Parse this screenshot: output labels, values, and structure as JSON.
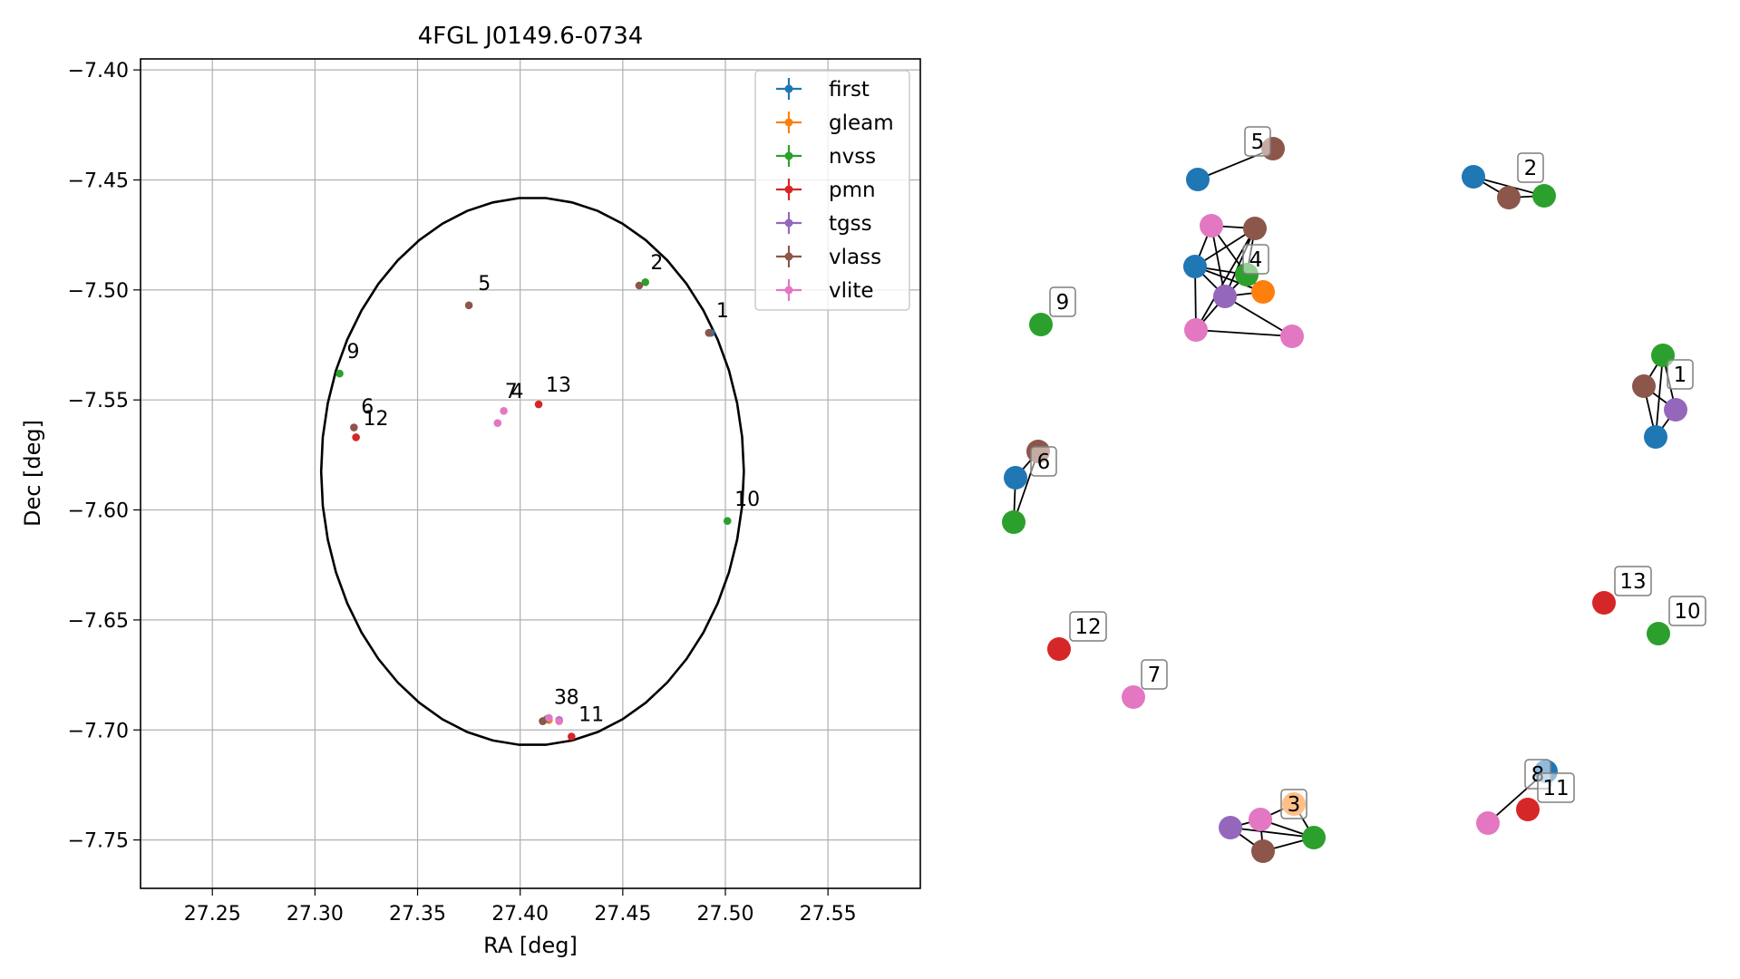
{
  "chart_data": [
    {
      "type": "scatter",
      "title": "4FGL J0149.6-0734",
      "xlabel": "RA [deg]",
      "ylabel": "Dec [deg]",
      "xlim": [
        27.215,
        27.595
      ],
      "ylim": [
        -7.772,
        -7.395
      ],
      "xticks": [
        27.25,
        27.3,
        27.35,
        27.4,
        27.45,
        27.5,
        27.55
      ],
      "xtick_labels": [
        "27.25",
        "27.30",
        "27.35",
        "27.40",
        "27.45",
        "27.50",
        "27.55"
      ],
      "yticks": [
        -7.4,
        -7.45,
        -7.5,
        -7.55,
        -7.6,
        -7.65,
        -7.7,
        -7.75
      ],
      "ytick_labels": [
        "−7.40",
        "−7.45",
        "−7.50",
        "−7.55",
        "−7.60",
        "−7.65",
        "−7.70",
        "−7.75"
      ],
      "grid": true,
      "legend_position": "top-right",
      "ellipse": {
        "center": [
          27.406,
          -7.5825
        ],
        "ra_semi_axis": 0.103,
        "dec_semi_axis": 0.1245,
        "color": "#000000"
      },
      "series": [
        {
          "name": "first",
          "color": "#1f77b4",
          "points": [
            [
              27.492,
              -7.5195
            ],
            [
              27.411,
              -7.696
            ],
            [
              27.493,
              -7.5195
            ]
          ]
        },
        {
          "name": "gleam",
          "color": "#ff7f0e",
          "points": [
            [
              27.414,
              -7.6955
            ]
          ]
        },
        {
          "name": "nvss",
          "color": "#2ca02c",
          "points": [
            [
              27.461,
              -7.4965
            ],
            [
              27.312,
              -7.538
            ],
            [
              27.501,
              -7.605
            ],
            [
              27.413,
              -7.695
            ]
          ]
        },
        {
          "name": "pmn",
          "color": "#d62728",
          "points": [
            [
              27.409,
              -7.552
            ],
            [
              27.32,
              -7.567
            ],
            [
              27.425,
              -7.703
            ]
          ]
        },
        {
          "name": "tgss",
          "color": "#9467bd",
          "points": [
            [
              27.419,
              -7.6955
            ]
          ]
        },
        {
          "name": "vlass",
          "color": "#8c564b",
          "points": [
            [
              27.458,
              -7.498
            ],
            [
              27.375,
              -7.507
            ],
            [
              27.319,
              -7.5625
            ],
            [
              27.411,
              -7.696
            ],
            [
              27.492,
              -7.5195
            ]
          ]
        },
        {
          "name": "vlite",
          "color": "#e377c2",
          "points": [
            [
              27.392,
              -7.555
            ],
            [
              27.389,
              -7.5605
            ],
            [
              27.414,
              -7.6945
            ],
            [
              27.419,
              -7.696
            ]
          ]
        }
      ],
      "labels": [
        {
          "text": "1",
          "x": 27.4955,
          "y": -7.5125
        },
        {
          "text": "2",
          "x": 27.4635,
          "y": -7.4905
        },
        {
          "text": "3",
          "x": 27.4165,
          "y": -7.6882
        },
        {
          "text": "4",
          "x": 27.3955,
          "y": -7.549
        },
        {
          "text": "5",
          "x": 27.3795,
          "y": -7.5
        },
        {
          "text": "6",
          "x": 27.3225,
          "y": -7.5562
        },
        {
          "text": "7",
          "x": 27.3925,
          "y": -7.549
        },
        {
          "text": "8",
          "x": 27.4225,
          "y": -7.6882
        },
        {
          "text": "9",
          "x": 27.3155,
          "y": -7.531
        },
        {
          "text": "10",
          "x": 27.5045,
          "y": -7.5982
        },
        {
          "text": "11",
          "x": 27.4285,
          "y": -7.696
        },
        {
          "text": "12",
          "x": 27.3235,
          "y": -7.5615
        },
        {
          "text": "13",
          "x": 27.4125,
          "y": -7.5462
        }
      ]
    },
    {
      "type": "network",
      "series": [
        {
          "name": "first",
          "color": "#1f77b4"
        },
        {
          "name": "gleam",
          "color": "#ff7f0e"
        },
        {
          "name": "nvss",
          "color": "#2ca02c"
        },
        {
          "name": "pmn",
          "color": "#d62728"
        },
        {
          "name": "tgss",
          "color": "#9467bd"
        },
        {
          "name": "vlass",
          "color": "#8c564b"
        },
        {
          "name": "vlite",
          "color": "#e377c2"
        }
      ],
      "clusters": [
        {
          "label": "1",
          "nodes": [
            "nvss",
            "vlass",
            "tgss",
            "first"
          ],
          "edges": [
            [
              0,
              1
            ],
            [
              0,
              2
            ],
            [
              0,
              3
            ],
            [
              1,
              2
            ],
            [
              1,
              3
            ],
            [
              2,
              3
            ]
          ]
        },
        {
          "label": "2",
          "nodes": [
            "first",
            "vlass",
            "nvss"
          ],
          "edges": [
            [
              0,
              1
            ],
            [
              0,
              2
            ],
            [
              1,
              2
            ]
          ]
        },
        {
          "label": "3",
          "nodes": [
            "gleam",
            "vlite",
            "tgss",
            "vlass",
            "nvss"
          ],
          "edges": [
            [
              0,
              1
            ],
            [
              1,
              2
            ],
            [
              1,
              4
            ],
            [
              2,
              3
            ],
            [
              2,
              4
            ],
            [
              3,
              4
            ],
            [
              0,
              4
            ],
            [
              1,
              3
            ]
          ]
        },
        {
          "label": "4",
          "nodes": [
            "vlite",
            "vlass",
            "first",
            "nvss",
            "gleam",
            "tgss",
            "vlite",
            "vlite"
          ],
          "edges": [
            [
              0,
              1
            ],
            [
              0,
              3
            ],
            [
              0,
              5
            ],
            [
              1,
              3
            ],
            [
              1,
              5
            ],
            [
              1,
              6
            ],
            [
              2,
              3
            ],
            [
              2,
              6
            ],
            [
              2,
              5
            ],
            [
              3,
              4
            ],
            [
              3,
              5
            ],
            [
              4,
              5
            ],
            [
              2,
              4
            ],
            [
              6,
              7
            ],
            [
              5,
              7
            ],
            [
              6,
              5
            ],
            [
              0,
              2
            ],
            [
              1,
              2
            ]
          ]
        },
        {
          "label": "5",
          "nodes": [
            "first",
            "vlass"
          ],
          "edges": [
            [
              0,
              1
            ]
          ]
        },
        {
          "label": "6",
          "nodes": [
            "vlass",
            "first",
            "nvss"
          ],
          "edges": [
            [
              0,
              1
            ],
            [
              0,
              2
            ],
            [
              1,
              2
            ]
          ]
        },
        {
          "label": "7",
          "nodes": [
            "vlite"
          ],
          "edges": []
        },
        {
          "label": "8",
          "nodes": [
            "first",
            "vlite"
          ],
          "edges": [
            [
              0,
              1
            ]
          ]
        },
        {
          "label": "9",
          "nodes": [
            "nvss"
          ],
          "edges": []
        },
        {
          "label": "10",
          "nodes": [
            "nvss"
          ],
          "edges": []
        },
        {
          "label": "11",
          "nodes": [
            "pmn"
          ],
          "edges": []
        },
        {
          "label": "12",
          "nodes": [
            "pmn"
          ],
          "edges": []
        },
        {
          "label": "13",
          "nodes": [
            "pmn"
          ],
          "edges": []
        }
      ]
    }
  ]
}
